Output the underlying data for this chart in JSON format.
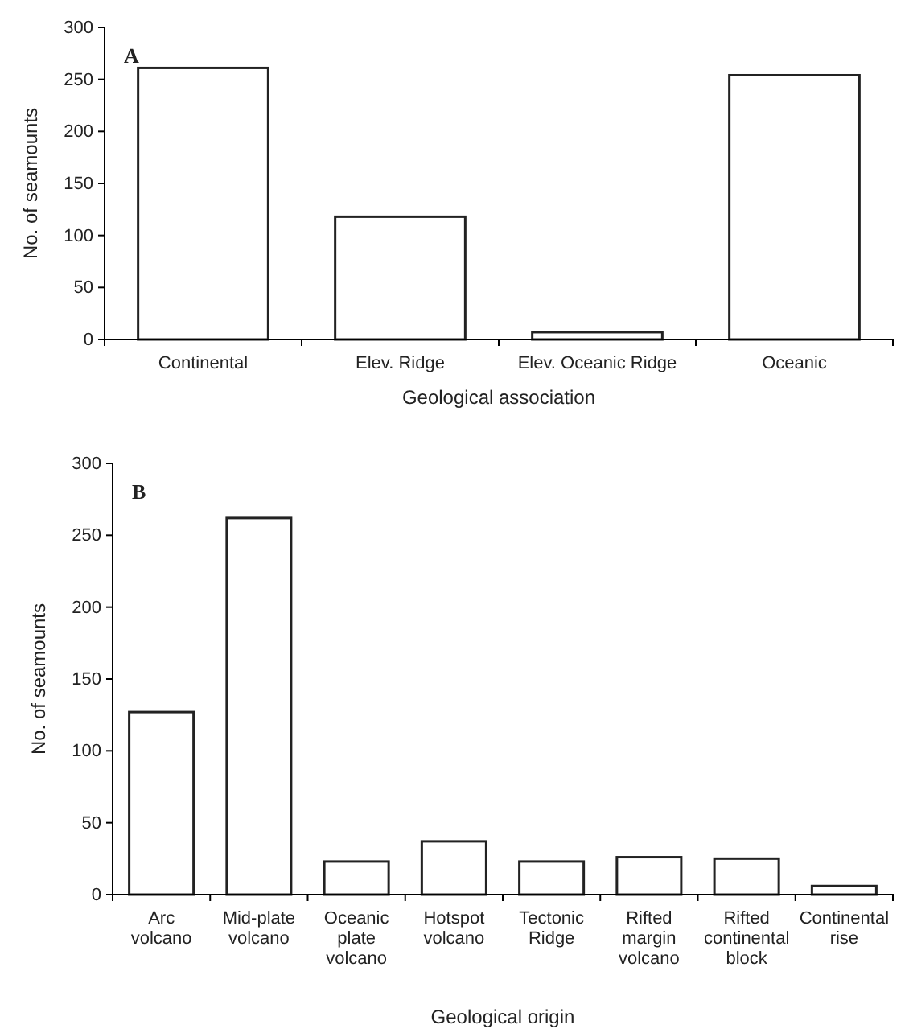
{
  "chart_data": [
    {
      "type": "bar",
      "annotations": [
        "A"
      ],
      "xlabel": "Geological association",
      "ylabel": "No. of seamounts",
      "categories": [
        "Continental",
        "Elev. Ridge",
        "Elev. Oceanic Ridge",
        "Oceanic"
      ],
      "values": [
        261,
        118,
        7,
        254
      ],
      "color": "#ffffff",
      "ylim": [
        0,
        300
      ],
      "yticks": [
        0,
        50,
        100,
        150,
        200,
        250,
        300
      ],
      "grid": false
    },
    {
      "type": "bar",
      "annotations": [
        "B"
      ],
      "xlabel": "Geological origin",
      "ylabel": "No. of seamounts",
      "categories": [
        "Arc volcano",
        "Mid-plate volcano",
        "Oceanic plate volcano",
        "Hotspot volcano",
        "Tectonic Ridge",
        "Rifted margin volcano",
        "Rifted continental block",
        "Continental rise"
      ],
      "values": [
        127,
        262,
        23,
        37,
        23,
        26,
        25,
        6
      ],
      "color": "#ffffff",
      "ylim": [
        0,
        300
      ],
      "yticks": [
        0,
        50,
        100,
        150,
        200,
        250,
        300
      ],
      "grid": false
    }
  ]
}
